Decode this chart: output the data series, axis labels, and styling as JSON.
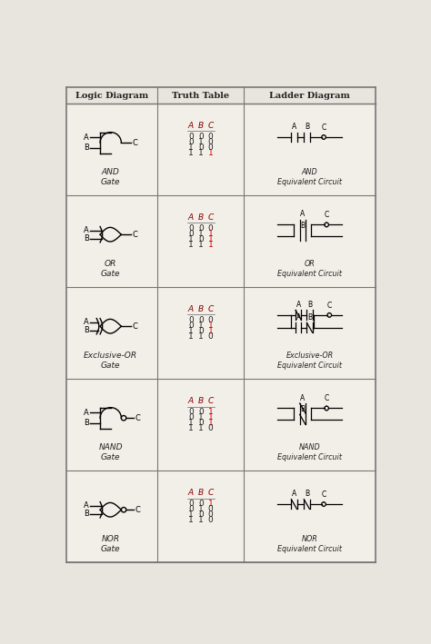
{
  "bg_color": "#e8e4de",
  "table_bg": "#f2efe9",
  "header_bg": "#e8e4de",
  "border_color": "#777777",
  "text_color": "#222222",
  "red_color": "#cc0000",
  "col_headers": [
    "Logic Diagram",
    "Truth Table",
    "Ladder Diagram"
  ],
  "gate_labels": [
    "AND\nGate",
    "OR\nGate",
    "Exclusive-OR\nGate",
    "NAND\nGate",
    "NOR\nGate"
  ],
  "ladder_labels": [
    "AND\nEquivalent Circuit",
    "OR\nEquivalent Circuit",
    "Exclusive-OR\nEquivalent Circuit",
    "NAND\nEquivalent Circuit",
    "NOR\nEquivalent Circuit"
  ],
  "truth_tables": {
    "AND": {
      "cols": [
        "A",
        "B",
        "C"
      ],
      "rows": [
        [
          0,
          0,
          0
        ],
        [
          0,
          1,
          0
        ],
        [
          1,
          0,
          0
        ],
        [
          1,
          1,
          1
        ]
      ]
    },
    "OR": {
      "cols": [
        "A",
        "B",
        "C"
      ],
      "rows": [
        [
          0,
          0,
          0
        ],
        [
          0,
          1,
          1
        ],
        [
          1,
          0,
          1
        ],
        [
          1,
          1,
          1
        ]
      ]
    },
    "XOR": {
      "cols": [
        "A",
        "B",
        "C"
      ],
      "rows": [
        [
          0,
          0,
          0
        ],
        [
          0,
          1,
          1
        ],
        [
          1,
          0,
          1
        ],
        [
          1,
          1,
          0
        ]
      ]
    },
    "NAND": {
      "cols": [
        "A",
        "B",
        "C"
      ],
      "rows": [
        [
          0,
          0,
          1
        ],
        [
          0,
          1,
          1
        ],
        [
          1,
          0,
          1
        ],
        [
          1,
          1,
          0
        ]
      ]
    },
    "NOR": {
      "cols": [
        "A",
        "B",
        "C"
      ],
      "rows": [
        [
          0,
          0,
          1
        ],
        [
          0,
          1,
          0
        ],
        [
          1,
          0,
          0
        ],
        [
          1,
          1,
          0
        ]
      ]
    }
  }
}
